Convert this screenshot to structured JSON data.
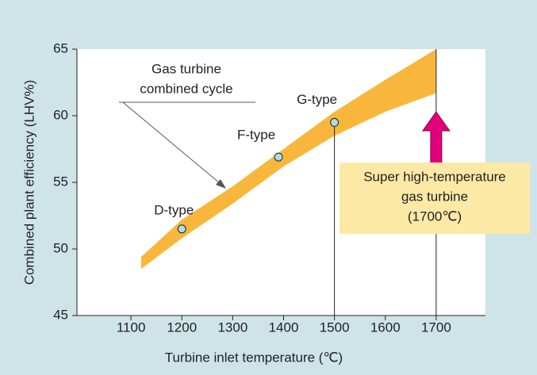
{
  "chart_data": {
    "type": "band",
    "xlabel": "Turbine inlet temperature (℃)",
    "ylabel": "Combined plant efficiency (LHV%)",
    "xlim": [
      1000,
      1800
    ],
    "xticks": [
      1100,
      1200,
      1300,
      1400,
      1500,
      1600,
      1700
    ],
    "ylim": [
      45,
      65
    ],
    "yticks": [
      45,
      50,
      55,
      60,
      65
    ],
    "band": {
      "color": "#f8b73c",
      "x": [
        1120,
        1200,
        1300,
        1400,
        1500,
        1600,
        1700
      ],
      "upper": [
        49.4,
        52.2,
        54.7,
        57.5,
        60.3,
        62.7,
        65
      ],
      "lower": [
        48.5,
        50.8,
        53.4,
        56.2,
        58.5,
        60.3,
        61.7
      ]
    },
    "points": {
      "labels": [
        "D-type",
        "F-type",
        "G-type"
      ],
      "x": [
        1200,
        1390,
        1500
      ],
      "y": [
        51.5,
        56.9,
        59.5
      ],
      "color": "#a8dceb"
    },
    "callout": [
      "Gas turbine",
      "combined cycle"
    ],
    "box": [
      "Super high-temperature",
      "gas turbine",
      "(1700℃)"
    ]
  }
}
